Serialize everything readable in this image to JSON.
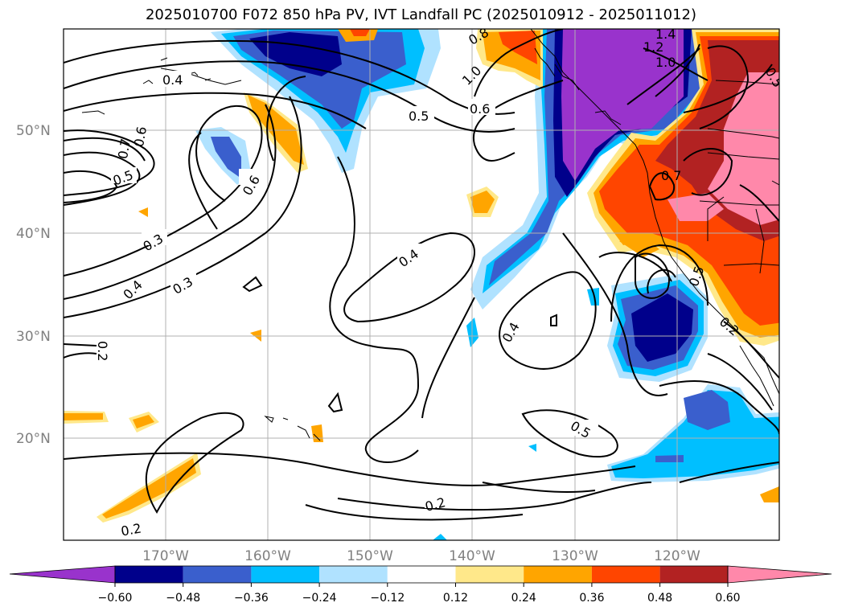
{
  "title": "2025010700 F072 850 hPa PV, IVT Landfall PC (2025010912 - 2025011012)",
  "axes": {
    "lat_ticks": [
      "50°N",
      "40°N",
      "30°N",
      "20°N"
    ],
    "lon_ticks": [
      "170°W",
      "160°W",
      "150°W",
      "140°W",
      "130°W",
      "120°W"
    ]
  },
  "contour_labels": [
    "0.4",
    "0.7",
    "0.6",
    "0.5",
    "0.6",
    "0.5",
    "0.6",
    "1.0",
    "0.8",
    "1.4",
    "1.2",
    "1.0",
    "0.5",
    "0.7",
    "0.3",
    "0.3",
    "0.4",
    "0.4",
    "0.4",
    "0.2",
    "0.5",
    "0.2",
    "0.2",
    "0.2",
    "0.5"
  ],
  "colorbar": {
    "labels": [
      "−0.60",
      "−0.48",
      "−0.36",
      "−0.24",
      "−0.12",
      "0.12",
      "0.24",
      "0.36",
      "0.48",
      "0.60"
    ],
    "colors": {
      "under": "#9933cc",
      "bins": [
        "#00008b",
        "#3a5fcd",
        "#00bfff",
        "#b0e2ff",
        "#ffffff",
        "#ffe88a",
        "#ffa500",
        "#ff4500",
        "#b22222"
      ],
      "over": "#ff88aa"
    }
  },
  "colors": {
    "purple": "#9933cc",
    "navy": "#00008b",
    "blue": "#3a5fcd",
    "cyan": "#00bfff",
    "lightblue": "#b0e2ff",
    "yellow": "#ffe88a",
    "orange": "#ffa500",
    "redorange": "#ff4500",
    "darkred": "#b22222",
    "pink": "#ff88aa",
    "grid": "#b0b0b0",
    "tick": "#808080"
  }
}
